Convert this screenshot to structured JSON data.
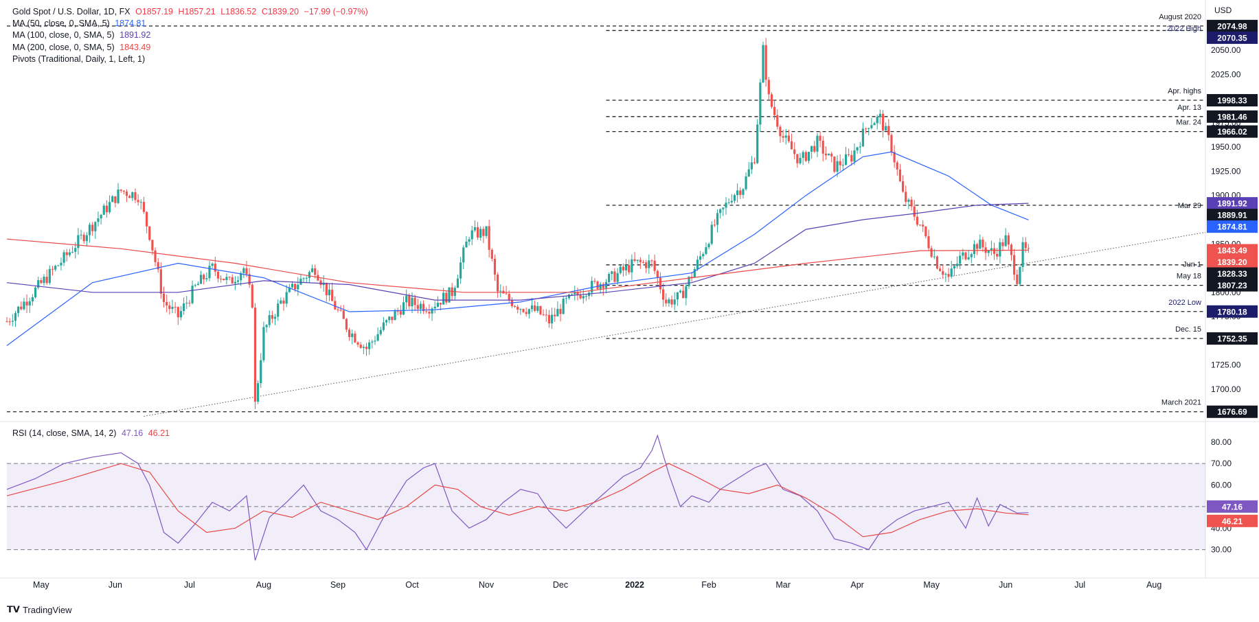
{
  "header": {
    "symbol": "Gold Spot / U.S. Dollar, 1D, FX",
    "open": "O1857.19",
    "high": "H1857.21",
    "low": "L1836.52",
    "close": "C1839.20",
    "change": "−17.99 (−0.97%)"
  },
  "indicators": {
    "ma50": {
      "label": "MA (50, close, 0, SMA, 5)",
      "value": "1874.81",
      "color": "#2962ff"
    },
    "ma100": {
      "label": "MA (100, close, 0, SMA, 5)",
      "value": "1891.92",
      "color": "#5b3fb4"
    },
    "ma200": {
      "label": "MA (200, close, 0, SMA, 5)",
      "value": "1843.49",
      "color": "#e84747"
    },
    "pivots": {
      "label": "Pivots (Traditional, Daily, 1, Left, 1)"
    },
    "rsi": {
      "label": "RSI (14, close, SMA, 14, 2)",
      "value": "47.16",
      "ma_value": "46.21"
    }
  },
  "currency": "USD",
  "branding": {
    "name": "TradingView"
  },
  "colors": {
    "up": "#26a69a",
    "down": "#ef5350",
    "ma50": "#2962ff",
    "ma100": "#5b3fb4",
    "ma200": "#e84747",
    "rsi": "#7e57c2",
    "rsi_ma": "#e84747"
  },
  "chart_data": [
    {
      "type": "line",
      "title": "Gold Spot / U.S. Dollar, 1D, FX",
      "x_axis_labels": [
        "May",
        "Jun",
        "Jul",
        "Aug",
        "Sep",
        "Oct",
        "Nov",
        "Dec",
        "2022",
        "Feb",
        "Mar",
        "Apr",
        "May",
        "Jun",
        "Jul",
        "Aug"
      ],
      "y_ticks": [
        1700,
        1725,
        1750,
        1775,
        1800,
        1825,
        1850,
        1875,
        1900,
        1925,
        1950,
        1975,
        2000,
        2025,
        2050,
        2075
      ],
      "ylim": [
        1668,
        2082
      ],
      "price_path": [
        {
          "t": 0,
          "p": 1770
        },
        {
          "t": 20,
          "p": 1835
        },
        {
          "t": 30,
          "p": 1870
        },
        {
          "t": 40,
          "p": 1905
        },
        {
          "t": 46,
          "p": 1900
        },
        {
          "t": 50,
          "p": 1860
        },
        {
          "t": 55,
          "p": 1790
        },
        {
          "t": 60,
          "p": 1775
        },
        {
          "t": 66,
          "p": 1805
        },
        {
          "t": 72,
          "p": 1825
        },
        {
          "t": 78,
          "p": 1810
        },
        {
          "t": 83,
          "p": 1825
        },
        {
          "t": 86,
          "p": 1790
        },
        {
          "t": 87,
          "p": 1684
        },
        {
          "t": 90,
          "p": 1760
        },
        {
          "t": 96,
          "p": 1790
        },
        {
          "t": 102,
          "p": 1810
        },
        {
          "t": 108,
          "p": 1825
        },
        {
          "t": 114,
          "p": 1790
        },
        {
          "t": 120,
          "p": 1760
        },
        {
          "t": 126,
          "p": 1742
        },
        {
          "t": 132,
          "p": 1765
        },
        {
          "t": 140,
          "p": 1790
        },
        {
          "t": 148,
          "p": 1785
        },
        {
          "t": 156,
          "p": 1800
        },
        {
          "t": 162,
          "p": 1860
        },
        {
          "t": 168,
          "p": 1862
        },
        {
          "t": 172,
          "p": 1800
        },
        {
          "t": 180,
          "p": 1785
        },
        {
          "t": 186,
          "p": 1780
        },
        {
          "t": 190,
          "p": 1770
        },
        {
          "t": 196,
          "p": 1790
        },
        {
          "t": 204,
          "p": 1805
        },
        {
          "t": 212,
          "p": 1815
        },
        {
          "t": 220,
          "p": 1830
        },
        {
          "t": 226,
          "p": 1830
        },
        {
          "t": 231,
          "p": 1790
        },
        {
          "t": 236,
          "p": 1795
        },
        {
          "t": 242,
          "p": 1830
        },
        {
          "t": 248,
          "p": 1870
        },
        {
          "t": 254,
          "p": 1900
        },
        {
          "t": 258,
          "p": 1910
        },
        {
          "t": 262,
          "p": 1940
        },
        {
          "t": 265,
          "p": 2050
        },
        {
          "t": 267,
          "p": 2000
        },
        {
          "t": 272,
          "p": 1960
        },
        {
          "t": 278,
          "p": 1935
        },
        {
          "t": 284,
          "p": 1955
        },
        {
          "t": 290,
          "p": 1930
        },
        {
          "t": 296,
          "p": 1940
        },
        {
          "t": 302,
          "p": 1975
        },
        {
          "t": 306,
          "p": 1980
        },
        {
          "t": 310,
          "p": 1950
        },
        {
          "t": 314,
          "p": 1900
        },
        {
          "t": 320,
          "p": 1870
        },
        {
          "t": 326,
          "p": 1830
        },
        {
          "t": 330,
          "p": 1815
        },
        {
          "t": 334,
          "p": 1835
        },
        {
          "t": 340,
          "p": 1850
        },
        {
          "t": 346,
          "p": 1840
        },
        {
          "t": 350,
          "p": 1855
        },
        {
          "t": 354,
          "p": 1815
        },
        {
          "t": 356,
          "p": 1845
        },
        {
          "t": 358,
          "p": 1839.2
        }
      ],
      "moving_averages": [
        {
          "name": "MA (50, close, 0, SMA, 5)",
          "points": [
            {
              "t": 0,
              "p": 1745
            },
            {
              "t": 30,
              "p": 1810
            },
            {
              "t": 60,
              "p": 1830
            },
            {
              "t": 90,
              "p": 1815
            },
            {
              "t": 120,
              "p": 1780
            },
            {
              "t": 150,
              "p": 1782
            },
            {
              "t": 180,
              "p": 1790
            },
            {
              "t": 210,
              "p": 1808
            },
            {
              "t": 240,
              "p": 1820
            },
            {
              "t": 262,
              "p": 1860
            },
            {
              "t": 280,
              "p": 1900
            },
            {
              "t": 300,
              "p": 1940
            },
            {
              "t": 310,
              "p": 1945
            },
            {
              "t": 330,
              "p": 1920
            },
            {
              "t": 345,
              "p": 1890
            },
            {
              "t": 358,
              "p": 1874.81
            }
          ]
        },
        {
          "name": "MA (100, close, 0, SMA, 5)",
          "points": [
            {
              "t": 0,
              "p": 1810
            },
            {
              "t": 30,
              "p": 1800
            },
            {
              "t": 60,
              "p": 1800
            },
            {
              "t": 90,
              "p": 1812
            },
            {
              "t": 120,
              "p": 1808
            },
            {
              "t": 150,
              "p": 1792
            },
            {
              "t": 180,
              "p": 1792
            },
            {
              "t": 210,
              "p": 1800
            },
            {
              "t": 240,
              "p": 1810
            },
            {
              "t": 262,
              "p": 1830
            },
            {
              "t": 280,
              "p": 1865
            },
            {
              "t": 300,
              "p": 1875
            },
            {
              "t": 320,
              "p": 1882
            },
            {
              "t": 340,
              "p": 1890
            },
            {
              "t": 358,
              "p": 1891.92
            }
          ]
        },
        {
          "name": "MA (200, close, 0, SMA, 5)",
          "points": [
            {
              "t": 0,
              "p": 1855
            },
            {
              "t": 40,
              "p": 1845
            },
            {
              "t": 80,
              "p": 1830
            },
            {
              "t": 120,
              "p": 1810
            },
            {
              "t": 160,
              "p": 1800
            },
            {
              "t": 200,
              "p": 1800
            },
            {
              "t": 240,
              "p": 1815
            },
            {
              "t": 280,
              "p": 1830
            },
            {
              "t": 320,
              "p": 1843
            },
            {
              "t": 358,
              "p": 1843.49
            }
          ]
        }
      ],
      "price_labels": [
        {
          "value": "2074.98",
          "note": "August 2020",
          "style": "dark"
        },
        {
          "value": "2070.35",
          "note": "2022 High",
          "style": "navy"
        },
        {
          "value": "1998.33",
          "note": "Apr. highs",
          "style": "dark"
        },
        {
          "value": "1981.46",
          "note": "Apr. 13",
          "style": "dark"
        },
        {
          "value": "1966.02",
          "note": "Mar. 24",
          "style": "dark"
        },
        {
          "value": "1891.92",
          "note": "",
          "style": "purple"
        },
        {
          "value": "1889.91",
          "note": "Mar 29",
          "style": "dark"
        },
        {
          "value": "1874.81",
          "note": "",
          "style": "blue"
        },
        {
          "value": "1843.49",
          "note": "",
          "style": "red"
        },
        {
          "value": "1839.20",
          "note": "",
          "style": "red"
        },
        {
          "value": "1828.33",
          "note": "Jun 1",
          "style": "dark"
        },
        {
          "value": "1807.23",
          "note": "May 18",
          "style": "dark"
        },
        {
          "value": "1780.18",
          "note": "2022 Low",
          "style": "navy"
        },
        {
          "value": "1752.35",
          "note": "Dec. 15",
          "style": "dark"
        },
        {
          "value": "1676.69",
          "note": "March 2021",
          "style": "dark"
        }
      ]
    },
    {
      "type": "line",
      "title": "RSI (14, close, SMA, 14, 2)",
      "y_ticks": [
        30,
        40,
        50,
        60,
        70,
        80
      ],
      "ylim": [
        20,
        86
      ],
      "bands": [
        30,
        50,
        70
      ],
      "series": [
        {
          "name": "RSI",
          "points": [
            {
              "t": 0,
              "p": 58
            },
            {
              "t": 10,
              "p": 63
            },
            {
              "t": 20,
              "p": 70
            },
            {
              "t": 30,
              "p": 73
            },
            {
              "t": 40,
              "p": 75
            },
            {
              "t": 46,
              "p": 70
            },
            {
              "t": 50,
              "p": 60
            },
            {
              "t": 55,
              "p": 38
            },
            {
              "t": 60,
              "p": 33
            },
            {
              "t": 66,
              "p": 42
            },
            {
              "t": 72,
              "p": 52
            },
            {
              "t": 78,
              "p": 48
            },
            {
              "t": 84,
              "p": 55
            },
            {
              "t": 87,
              "p": 25
            },
            {
              "t": 92,
              "p": 45
            },
            {
              "t": 98,
              "p": 52
            },
            {
              "t": 104,
              "p": 60
            },
            {
              "t": 110,
              "p": 48
            },
            {
              "t": 116,
              "p": 44
            },
            {
              "t": 122,
              "p": 38
            },
            {
              "t": 126,
              "p": 30
            },
            {
              "t": 132,
              "p": 45
            },
            {
              "t": 140,
              "p": 62
            },
            {
              "t": 146,
              "p": 68
            },
            {
              "t": 150,
              "p": 70
            },
            {
              "t": 156,
              "p": 48
            },
            {
              "t": 162,
              "p": 40
            },
            {
              "t": 168,
              "p": 44
            },
            {
              "t": 174,
              "p": 52
            },
            {
              "t": 180,
              "p": 58
            },
            {
              "t": 186,
              "p": 56
            },
            {
              "t": 190,
              "p": 48
            },
            {
              "t": 196,
              "p": 40
            },
            {
              "t": 204,
              "p": 50
            },
            {
              "t": 210,
              "p": 57
            },
            {
              "t": 216,
              "p": 64
            },
            {
              "t": 222,
              "p": 68
            },
            {
              "t": 226,
              "p": 76
            },
            {
              "t": 228,
              "p": 83
            },
            {
              "t": 232,
              "p": 65
            },
            {
              "t": 236,
              "p": 50
            },
            {
              "t": 240,
              "p": 55
            },
            {
              "t": 246,
              "p": 52
            },
            {
              "t": 250,
              "p": 58
            },
            {
              "t": 256,
              "p": 63
            },
            {
              "t": 262,
              "p": 68
            },
            {
              "t": 266,
              "p": 70
            },
            {
              "t": 272,
              "p": 58
            },
            {
              "t": 278,
              "p": 55
            },
            {
              "t": 284,
              "p": 48
            },
            {
              "t": 290,
              "p": 35
            },
            {
              "t": 296,
              "p": 33
            },
            {
              "t": 302,
              "p": 30
            },
            {
              "t": 306,
              "p": 38
            },
            {
              "t": 312,
              "p": 44
            },
            {
              "t": 318,
              "p": 48
            },
            {
              "t": 324,
              "p": 50
            },
            {
              "t": 330,
              "p": 52
            },
            {
              "t": 336,
              "p": 40
            },
            {
              "t": 340,
              "p": 54
            },
            {
              "t": 344,
              "p": 41
            },
            {
              "t": 348,
              "p": 51
            },
            {
              "t": 354,
              "p": 47
            },
            {
              "t": 358,
              "p": 47.16
            }
          ]
        },
        {
          "name": "RSI MA",
          "points": [
            {
              "t": 0,
              "p": 55
            },
            {
              "t": 20,
              "p": 62
            },
            {
              "t": 40,
              "p": 70
            },
            {
              "t": 50,
              "p": 66
            },
            {
              "t": 60,
              "p": 48
            },
            {
              "t": 70,
              "p": 38
            },
            {
              "t": 80,
              "p": 40
            },
            {
              "t": 90,
              "p": 48
            },
            {
              "t": 100,
              "p": 45
            },
            {
              "t": 110,
              "p": 52
            },
            {
              "t": 120,
              "p": 48
            },
            {
              "t": 130,
              "p": 44
            },
            {
              "t": 140,
              "p": 50
            },
            {
              "t": 150,
              "p": 60
            },
            {
              "t": 158,
              "p": 58
            },
            {
              "t": 166,
              "p": 50
            },
            {
              "t": 176,
              "p": 46
            },
            {
              "t": 186,
              "p": 50
            },
            {
              "t": 196,
              "p": 48
            },
            {
              "t": 206,
              "p": 52
            },
            {
              "t": 216,
              "p": 58
            },
            {
              "t": 226,
              "p": 66
            },
            {
              "t": 232,
              "p": 70
            },
            {
              "t": 240,
              "p": 65
            },
            {
              "t": 250,
              "p": 58
            },
            {
              "t": 260,
              "p": 56
            },
            {
              "t": 270,
              "p": 60
            },
            {
              "t": 280,
              "p": 54
            },
            {
              "t": 290,
              "p": 46
            },
            {
              "t": 300,
              "p": 36
            },
            {
              "t": 310,
              "p": 38
            },
            {
              "t": 320,
              "p": 44
            },
            {
              "t": 330,
              "p": 48
            },
            {
              "t": 340,
              "p": 49
            },
            {
              "t": 350,
              "p": 47
            },
            {
              "t": 358,
              "p": 46.21
            }
          ]
        }
      ]
    }
  ]
}
